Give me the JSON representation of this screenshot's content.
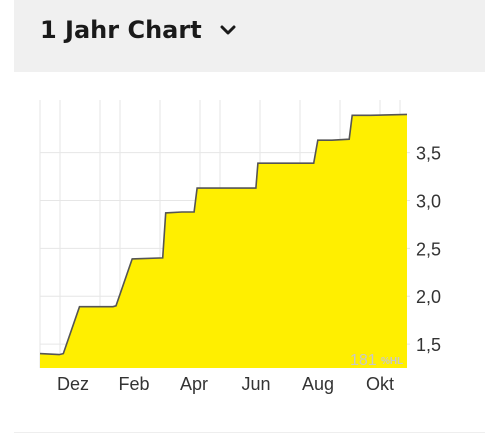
{
  "header": {
    "title": "1 Jahr Chart",
    "dropdown_icon": "chevron-down-icon"
  },
  "watermark": {
    "number": "181",
    "unit": "%HL"
  },
  "colors": {
    "fill": "#ffef00",
    "line": "#555555",
    "grid": "#e6e6e6"
  },
  "chart_data": {
    "type": "area",
    "title": "1 Jahr Chart",
    "xlabel": "",
    "ylabel": "",
    "x_ticks": [
      "Dez",
      "Feb",
      "Apr",
      "Jun",
      "Aug",
      "Okt"
    ],
    "y_ticks": [
      "1,5",
      "2,0",
      "2,5",
      "3,0",
      "3,5"
    ],
    "y_tick_values": [
      1.5,
      2.0,
      2.5,
      3.0,
      3.5
    ],
    "ylim": [
      1.25,
      4.05
    ],
    "x_range": [
      "2023-11",
      "2024-10"
    ],
    "grid": true,
    "legend": "none",
    "series": [
      {
        "x": [
          "2023-11-01",
          "2023-11-20",
          "2023-11-24",
          "2023-12-10",
          "2024-01-12",
          "2024-01-15",
          "2024-01-31",
          "2024-03-01",
          "2024-03-04",
          "2024-03-20",
          "2024-04-01",
          "2024-04-04",
          "2024-04-30",
          "2024-06-01",
          "2024-06-03",
          "2024-06-30",
          "2024-07-28",
          "2024-08-01",
          "2024-08-15",
          "2024-09-01",
          "2024-09-04",
          "2024-09-22",
          "2024-10-20"
        ],
        "values": [
          1.4,
          1.39,
          1.4,
          1.89,
          1.89,
          1.9,
          2.39,
          2.4,
          2.87,
          2.88,
          2.88,
          3.13,
          3.13,
          3.13,
          3.39,
          3.39,
          3.39,
          3.63,
          3.63,
          3.64,
          3.89,
          3.89,
          3.9
        ]
      }
    ]
  }
}
